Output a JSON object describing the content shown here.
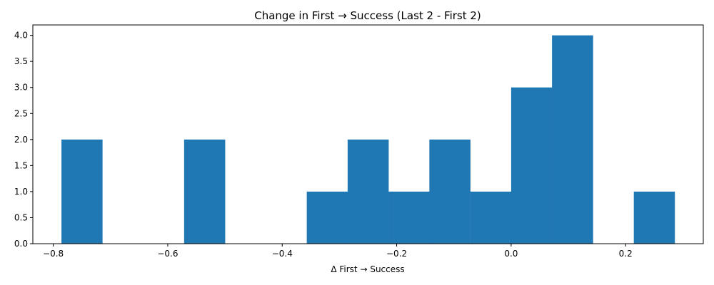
{
  "chart_data": {
    "type": "bar",
    "title": "Change in First → Success (Last 2 - First 2)",
    "xlabel": "Δ First → Success",
    "ylabel": "",
    "xlim": [
      -0.8357,
      0.3357
    ],
    "ylim": [
      0,
      4.2
    ],
    "xticks": [
      -0.8,
      -0.6,
      -0.4,
      -0.2,
      0.0,
      0.2
    ],
    "xtick_labels": [
      "−0.8",
      "−0.6",
      "−0.4",
      "−0.2",
      "0.0",
      "0.2"
    ],
    "yticks": [
      0,
      0.5,
      1,
      1.5,
      2,
      2.5,
      3,
      3.5,
      4
    ],
    "ytick_labels": [
      "0.0",
      "0.5",
      "1.0",
      "1.5",
      "2.0",
      "2.5",
      "3.0",
      "3.5",
      "4.0"
    ],
    "bin_width": 0.0714,
    "bins": [
      {
        "start": -0.7857,
        "count": 2
      },
      {
        "start": -0.7143,
        "count": 0
      },
      {
        "start": -0.6429,
        "count": 0
      },
      {
        "start": -0.5714,
        "count": 2
      },
      {
        "start": -0.5,
        "count": 0
      },
      {
        "start": -0.4286,
        "count": 0
      },
      {
        "start": -0.3571,
        "count": 1
      },
      {
        "start": -0.2857,
        "count": 2
      },
      {
        "start": -0.2143,
        "count": 1
      },
      {
        "start": -0.1429,
        "count": 2
      },
      {
        "start": -0.0714,
        "count": 1
      },
      {
        "start": 0.0,
        "count": 3
      },
      {
        "start": 0.0714,
        "count": 4
      },
      {
        "start": 0.1429,
        "count": 0
      },
      {
        "start": 0.2143,
        "count": 1
      }
    ],
    "bar_color": "#1f77b4",
    "grid": false,
    "legend": "none"
  }
}
